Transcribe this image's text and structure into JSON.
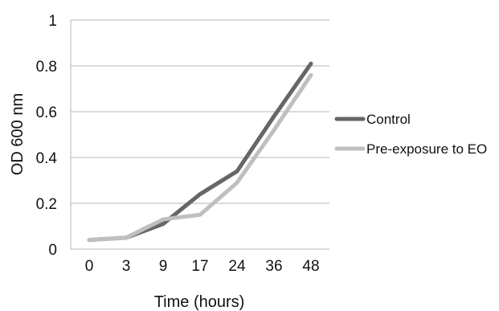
{
  "chart_data": {
    "type": "line",
    "title": "",
    "xlabel": "Time (hours)",
    "ylabel": "OD 600 nm",
    "categories": [
      "0",
      "3",
      "9",
      "17",
      "24",
      "36",
      "48"
    ],
    "ylim": [
      0,
      1
    ],
    "yticks": [
      "0",
      "0.2",
      "0.4",
      "0.6",
      "0.8",
      "1"
    ],
    "grid": true,
    "legend_position": "right",
    "series": [
      {
        "name": "Control",
        "color": "#666666",
        "values": [
          0.04,
          0.05,
          0.11,
          0.24,
          0.34,
          0.58,
          0.81
        ]
      },
      {
        "name": "Pre-exposure to EO",
        "color": "#bfbfbf",
        "values": [
          0.04,
          0.05,
          0.13,
          0.15,
          0.29,
          0.52,
          0.76
        ]
      }
    ]
  }
}
